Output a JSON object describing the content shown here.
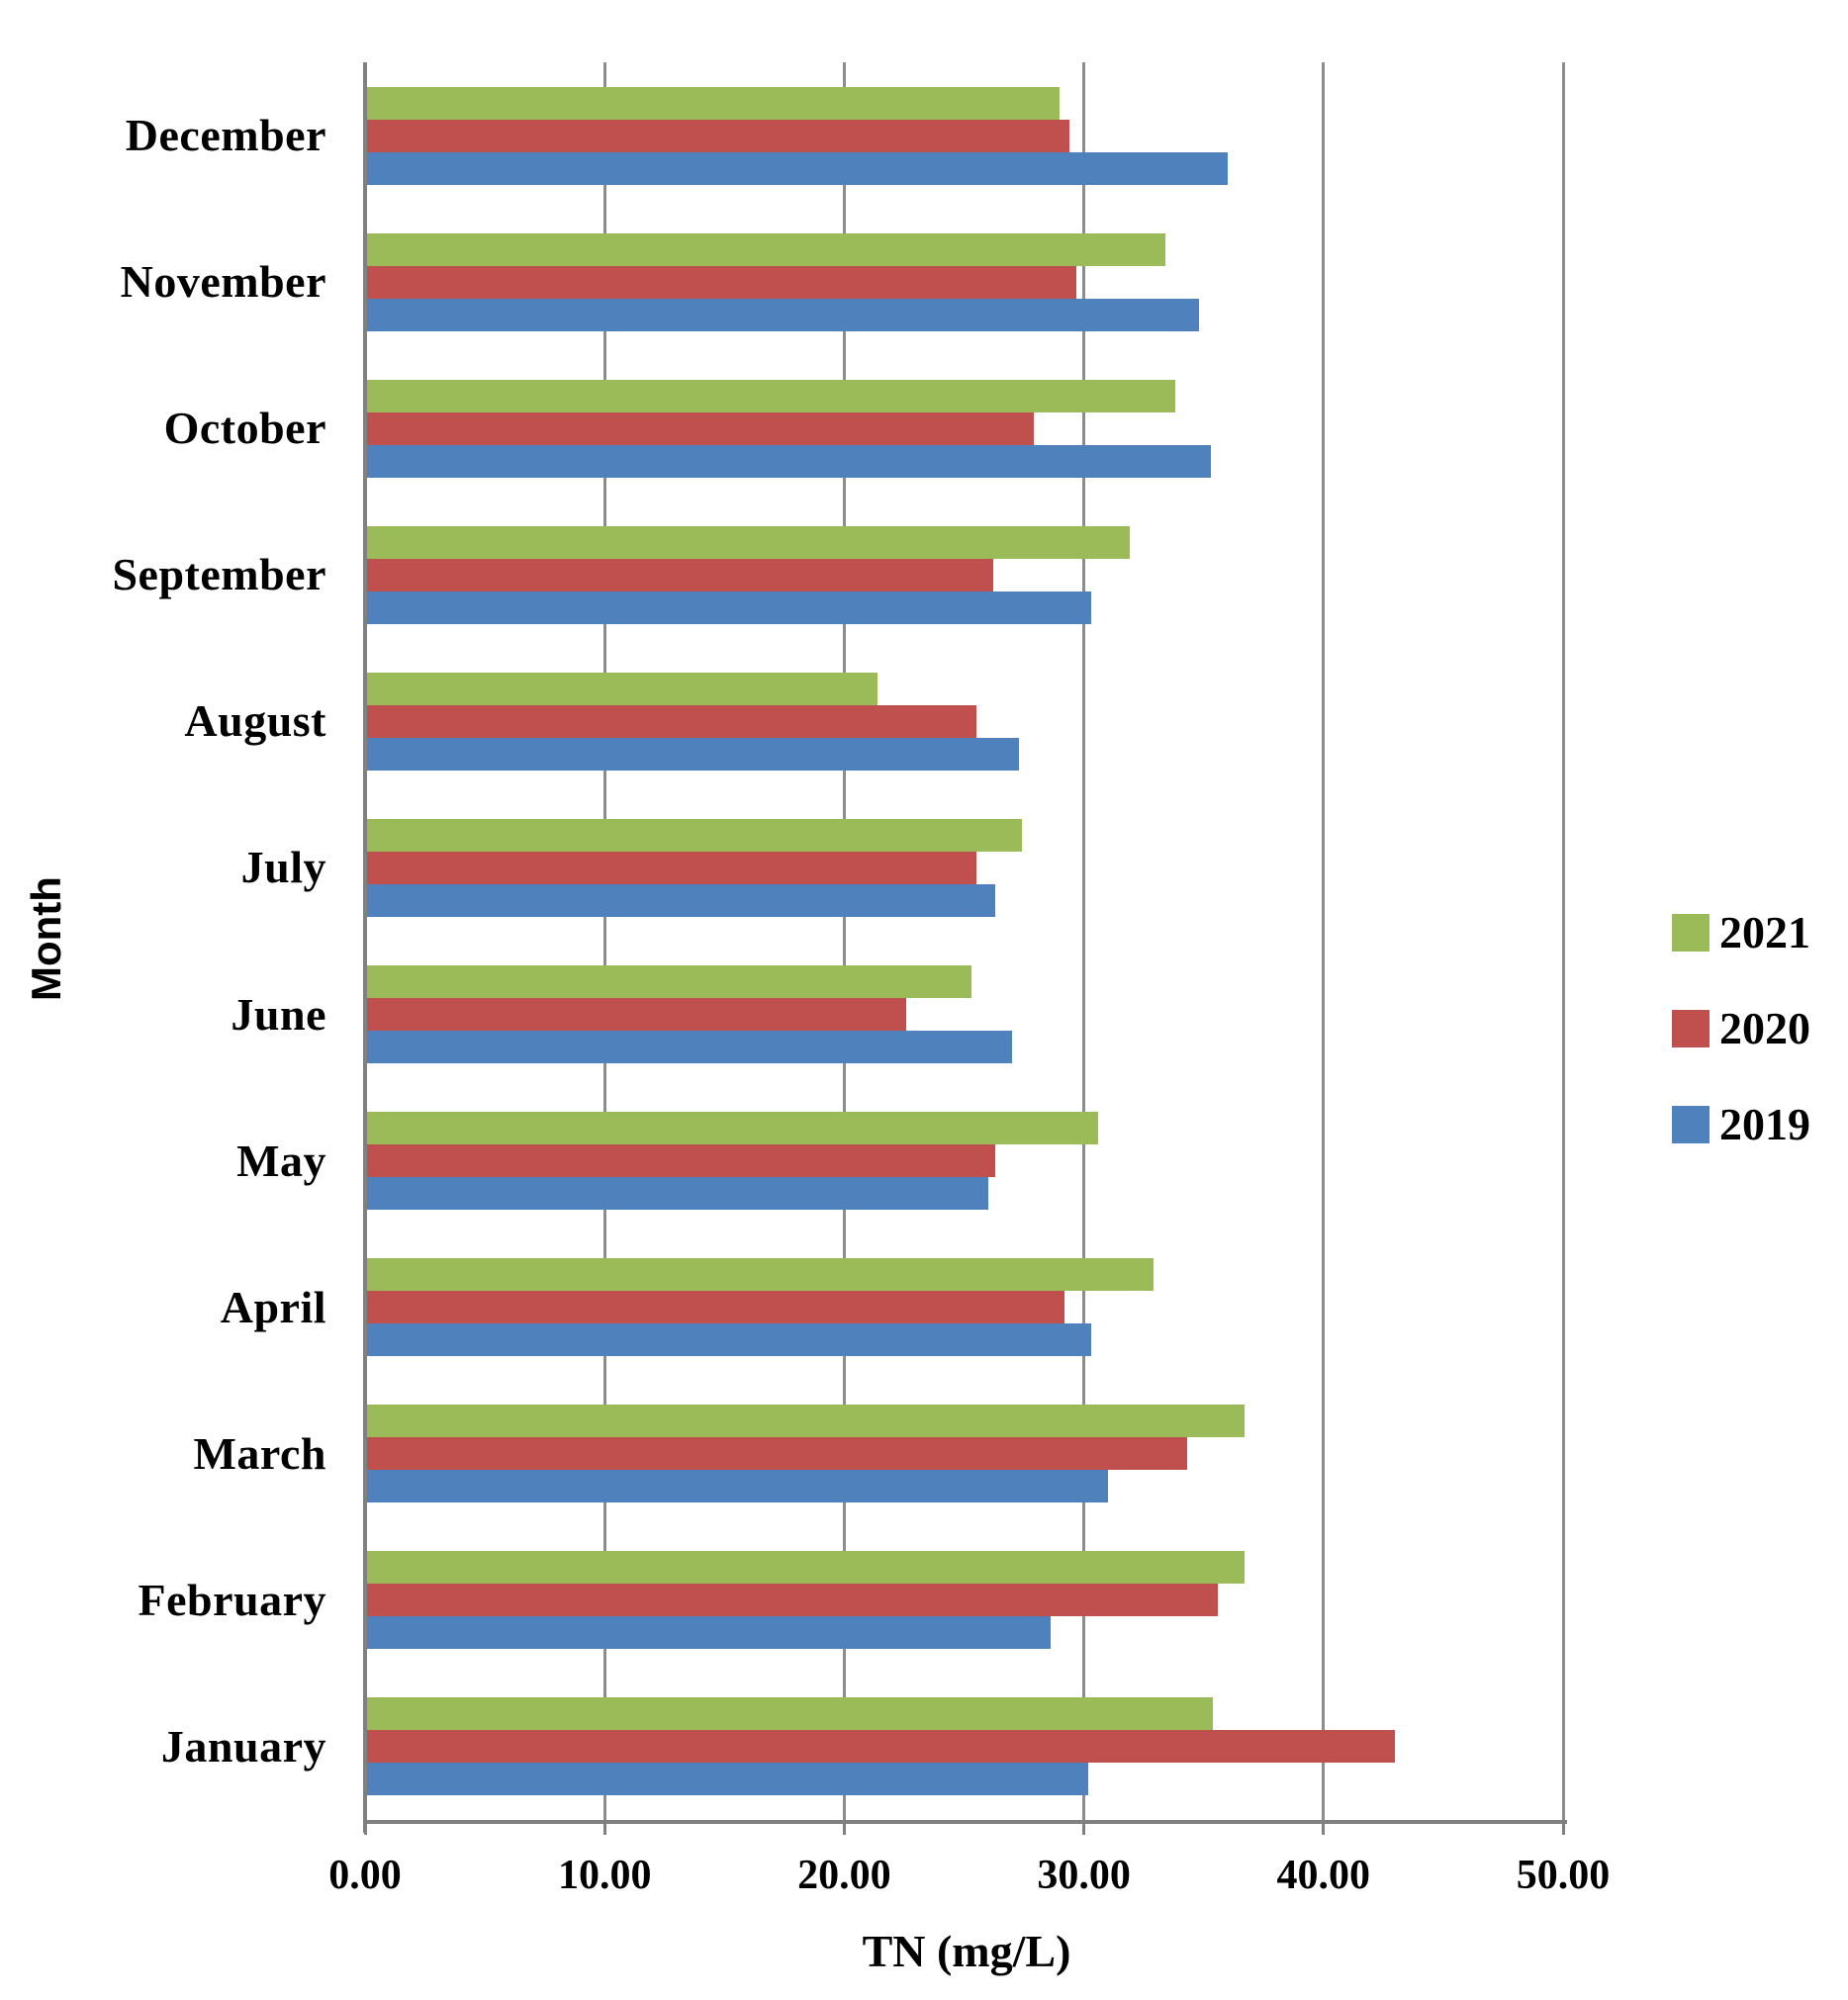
{
  "figure": {
    "x_axis_title": "TN (mg/L)",
    "y_axis_title": "Month",
    "x_tick_labels": [
      "0.00",
      "10.00",
      "20.00",
      "30.00",
      "40.00",
      "50.00"
    ],
    "legend": [
      {
        "label": "2021",
        "color": "#9BBB59"
      },
      {
        "label": "2020",
        "color": "#C0504D"
      },
      {
        "label": "2019",
        "color": "#4F81BD"
      }
    ]
  },
  "chart_data": {
    "type": "bar",
    "orientation": "horizontal",
    "xlabel": "TN (mg/L)",
    "ylabel": "Month",
    "xlim": [
      0,
      50
    ],
    "x_ticks": [
      0,
      10,
      20,
      30,
      40,
      50
    ],
    "grid": "vertical-only",
    "legend_position": "center-right",
    "category_order": "top-to-bottom",
    "bar_order_within_group_top_to_bottom": [
      "2021",
      "2020",
      "2019"
    ],
    "categories": [
      "December",
      "November",
      "October",
      "September",
      "August",
      "July",
      "June",
      "May",
      "April",
      "March",
      "February",
      "January"
    ],
    "series": [
      {
        "name": "2021",
        "color": "#9BBB59",
        "values": [
          29.0,
          33.4,
          33.8,
          31.9,
          21.4,
          27.4,
          25.3,
          30.6,
          32.9,
          36.7,
          36.7,
          35.4
        ]
      },
      {
        "name": "2020",
        "color": "#C0504D",
        "values": [
          29.4,
          29.7,
          27.9,
          26.2,
          25.5,
          25.5,
          22.6,
          26.3,
          29.2,
          34.3,
          35.6,
          43.0
        ]
      },
      {
        "name": "2019",
        "color": "#4F81BD",
        "values": [
          36.0,
          34.8,
          35.3,
          30.3,
          27.3,
          26.3,
          27.0,
          26.0,
          30.3,
          31.0,
          28.6,
          30.2
        ]
      }
    ],
    "unit": "mg/L"
  },
  "colors": {
    "axis": "#808080",
    "gridline": "#8C8C8C",
    "text": "#000000",
    "background": "#FFFFFF"
  }
}
